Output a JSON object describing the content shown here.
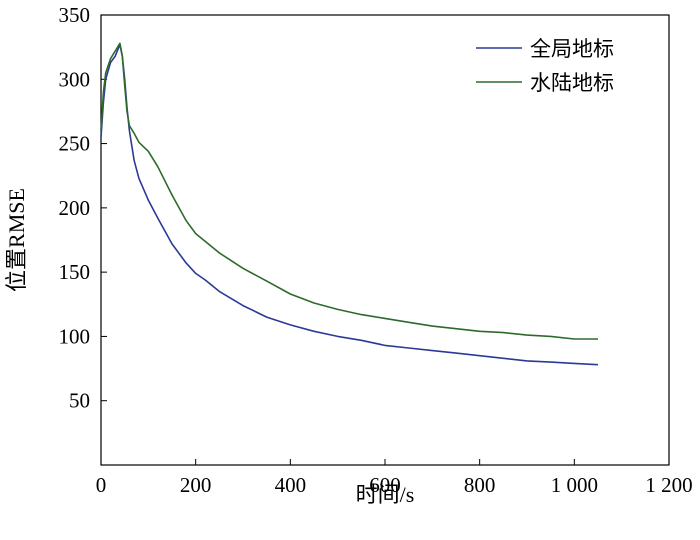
{
  "chart_data": {
    "type": "line",
    "title": "",
    "xlabel": "时间/s",
    "ylabel": "位置RMSE",
    "xlim": [
      0,
      1200
    ],
    "ylim": [
      0,
      350
    ],
    "grid": false,
    "legend_position": "top-right",
    "x_ticks": [
      {
        "value": 0,
        "label": "0"
      },
      {
        "value": 200,
        "label": "200"
      },
      {
        "value": 400,
        "label": "400"
      },
      {
        "value": 600,
        "label": "600"
      },
      {
        "value": 800,
        "label": "800"
      },
      {
        "value": 1000,
        "label": "1 000"
      },
      {
        "value": 1200,
        "label": "1 200"
      }
    ],
    "y_ticks": [
      {
        "value": 50,
        "label": "50"
      },
      {
        "value": 100,
        "label": "100"
      },
      {
        "value": 150,
        "label": "150"
      },
      {
        "value": 200,
        "label": "200"
      },
      {
        "value": 250,
        "label": "250"
      },
      {
        "value": 300,
        "label": "300"
      },
      {
        "value": 350,
        "label": "350"
      }
    ],
    "series": [
      {
        "name": "全局地标",
        "color": "#2b3a96",
        "x": [
          0,
          5,
          10,
          20,
          30,
          40,
          45,
          50,
          55,
          60,
          70,
          80,
          100,
          120,
          150,
          180,
          200,
          220,
          250,
          300,
          350,
          400,
          450,
          500,
          550,
          600,
          650,
          700,
          750,
          800,
          850,
          900,
          950,
          1000,
          1050
        ],
        "y": [
          255,
          282,
          300,
          313,
          318,
          327,
          318,
          300,
          278,
          260,
          237,
          223,
          206,
          192,
          172,
          157,
          149,
          144,
          135,
          124,
          115,
          109,
          104,
          100,
          97,
          93,
          91,
          89,
          87,
          85,
          83,
          81,
          80,
          79,
          78
        ]
      },
      {
        "name": "水陆地标",
        "color": "#2e6b2b",
        "x": [
          0,
          5,
          10,
          20,
          30,
          40,
          45,
          50,
          55,
          60,
          70,
          80,
          100,
          120,
          150,
          180,
          200,
          220,
          250,
          300,
          350,
          400,
          450,
          500,
          550,
          600,
          650,
          700,
          750,
          800,
          850,
          900,
          950,
          1000,
          1050
        ],
        "y": [
          260,
          290,
          305,
          316,
          322,
          328,
          318,
          295,
          275,
          264,
          258,
          251,
          244,
          232,
          210,
          190,
          180,
          174,
          165,
          153,
          143,
          133,
          126,
          121,
          117,
          114,
          111,
          108,
          106,
          104,
          103,
          101,
          100,
          98,
          98
        ]
      }
    ]
  }
}
